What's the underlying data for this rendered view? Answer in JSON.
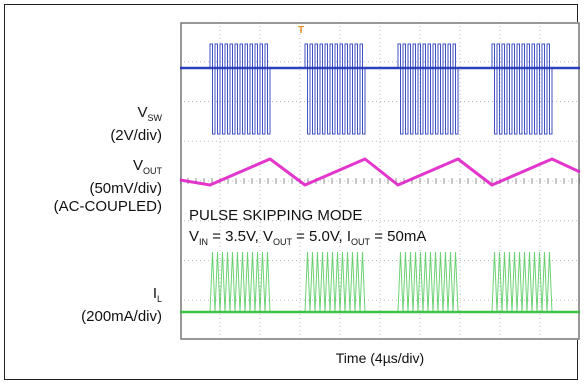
{
  "chart_data": {
    "type": "line",
    "title": "",
    "xlabel": "Time (4µs/div)",
    "ylabel": "",
    "grid": true,
    "divisions": {
      "x": 10,
      "y": 8
    },
    "channels": [
      {
        "id": 1,
        "color": "#1f34b8",
        "name_main": "V",
        "name_sub": "SW",
        "scale": "(2V/div)",
        "extra": ""
      },
      {
        "id": 3,
        "color": "#e020c8",
        "name_main": "V",
        "name_sub": "OUT",
        "scale": "(50mV/div)",
        "extra": "(AC-COUPLED)"
      },
      {
        "id": 4,
        "color": "#2fbf3a",
        "name_main": "I",
        "name_sub": "L",
        "scale": "(200mA/div)",
        "extra": ""
      }
    ],
    "pulse_bursts": 4,
    "pulses_per_burst": 12,
    "annotation": {
      "mode": "PULSE SKIPPING MODE",
      "vin_main": "V",
      "vin_sub": "IN",
      "vin_val": " = 3.5V, ",
      "vout_main": "V",
      "vout_sub": "OUT",
      "vout_val": " = 5.0V, ",
      "iout_main": "I",
      "iout_sub": "OUT",
      "iout_val": " = 50mA"
    },
    "trigger_marker": "T"
  }
}
